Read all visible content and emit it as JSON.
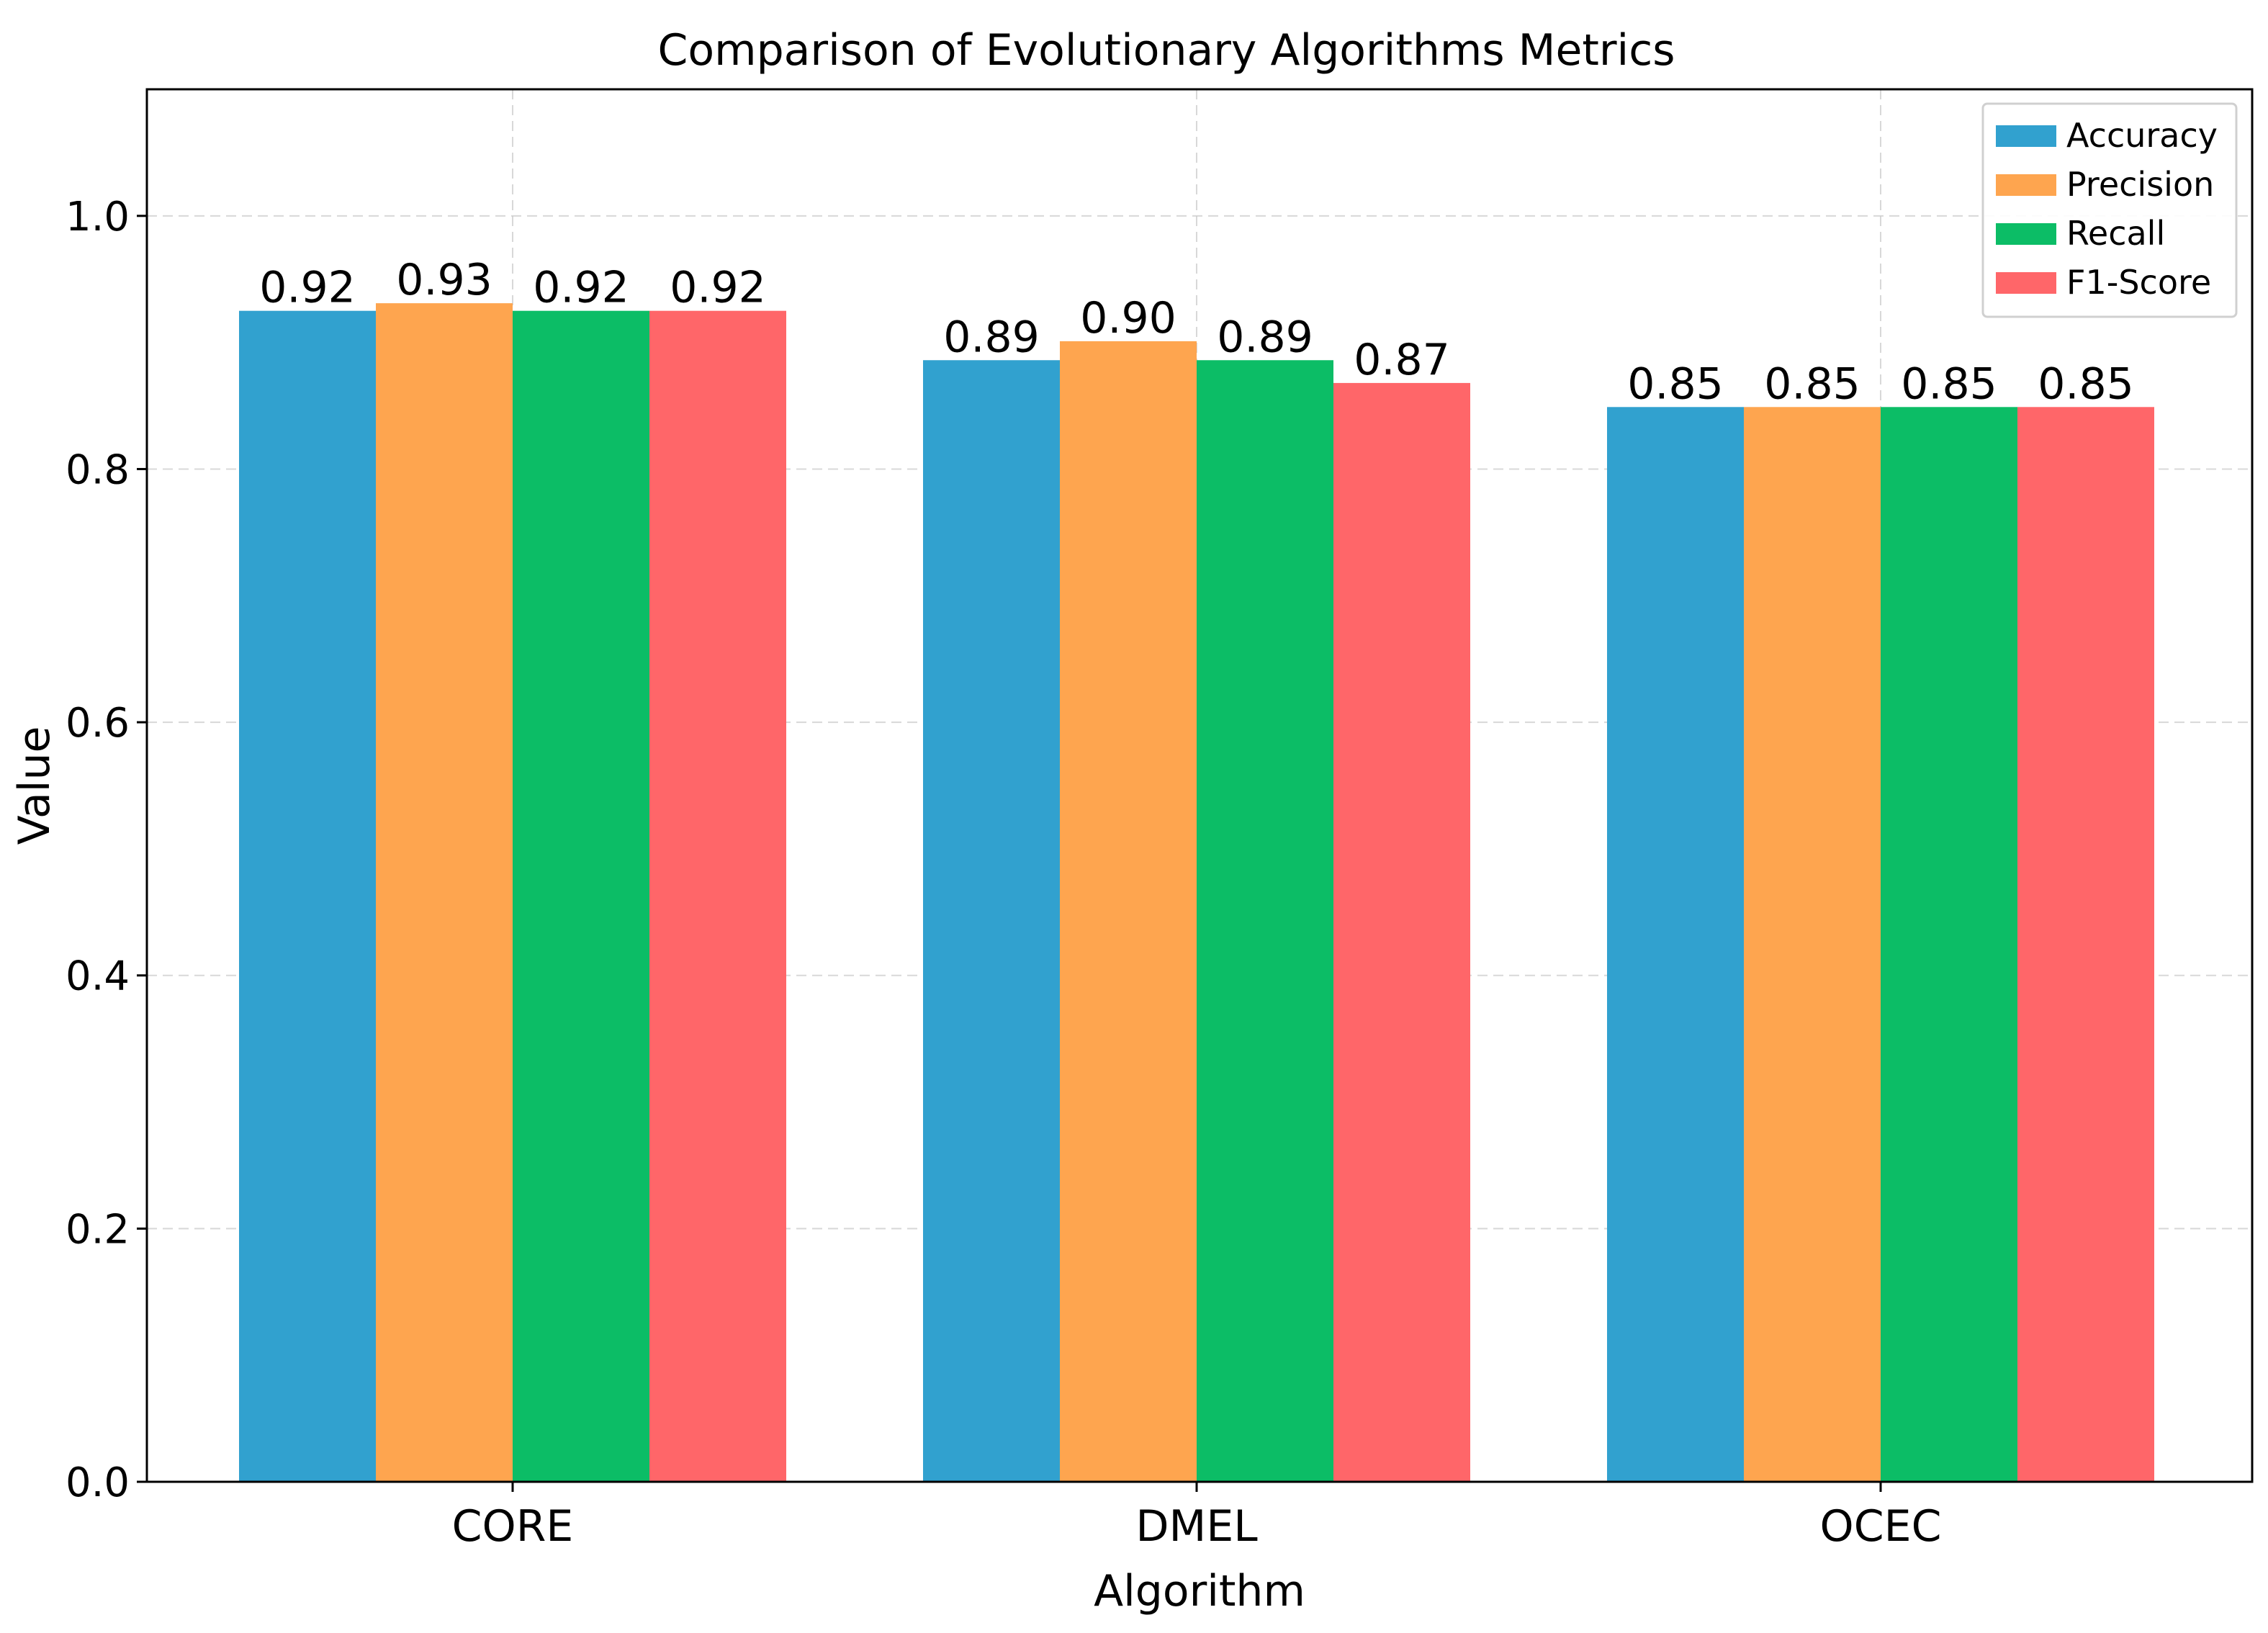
{
  "chart_data": {
    "type": "bar",
    "title": "Comparison of Evolutionary Algorithms Metrics",
    "xlabel": "Algorithm",
    "ylabel": "Value",
    "categories": [
      "CORE",
      "DMEL",
      "OCEC"
    ],
    "series": [
      {
        "name": "Accuracy",
        "color": "#31a1cf",
        "values": [
          0.925,
          0.886,
          0.849
        ],
        "labels": [
          "0.92",
          "0.89",
          "0.85"
        ]
      },
      {
        "name": "Precision",
        "color": "#fea54f",
        "values": [
          0.931,
          0.901,
          0.849
        ],
        "labels": [
          "0.93",
          "0.90",
          "0.85"
        ]
      },
      {
        "name": "Recall",
        "color": "#0cbd66",
        "values": [
          0.925,
          0.886,
          0.849
        ],
        "labels": [
          "0.92",
          "0.89",
          "0.85"
        ]
      },
      {
        "name": "F1-Score",
        "color": "#ff6669",
        "values": [
          0.925,
          0.868,
          0.849
        ],
        "labels": [
          "0.92",
          "0.87",
          "0.85"
        ]
      }
    ],
    "ylim": [
      0,
      1.1
    ],
    "yticks": [
      "0.0",
      "0.2",
      "0.4",
      "0.6",
      "0.8",
      "1.0"
    ],
    "grid": true,
    "legend_position": "top-right"
  }
}
